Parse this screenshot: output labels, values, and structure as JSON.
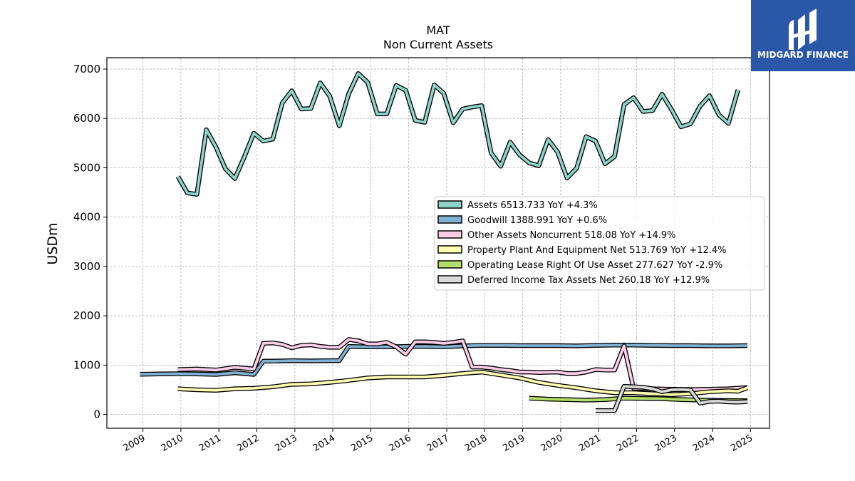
{
  "brand": {
    "logo_text": "MIDGARD FINANCE",
    "logo_bg": "#2b57a8",
    "logo_icon": "midgard-logo-icon"
  },
  "chart_data": {
    "type": "line",
    "title": "MAT",
    "subtitle": "Non Current  Assets",
    "ylabel": "USDm",
    "xlabel": "",
    "ylim": [
      -280,
      7230
    ],
    "xlim": [
      2008.05,
      2025.5
    ],
    "grid": true,
    "legend_position": "center-right",
    "y_ticks": [
      0,
      1000,
      2000,
      3000,
      4000,
      5000,
      6000,
      7000
    ],
    "x_ticks": [
      2009,
      2010,
      2011,
      2012,
      2013,
      2014,
      2015,
      2016,
      2017,
      2018,
      2019,
      2020,
      2021,
      2022,
      2023,
      2024,
      2025
    ],
    "series": [
      {
        "name": "Assets",
        "legend": "Assets  6513.733 YoY +4.3%",
        "color": "#8dd3c7",
        "points": [
          [
            2009.92,
            4820
          ],
          [
            2010.17,
            4490
          ],
          [
            2010.42,
            4460
          ],
          [
            2010.67,
            5770
          ],
          [
            2010.92,
            5420
          ],
          [
            2011.17,
            4980
          ],
          [
            2011.42,
            4780
          ],
          [
            2011.67,
            5220
          ],
          [
            2011.92,
            5700
          ],
          [
            2012.17,
            5540
          ],
          [
            2012.42,
            5580
          ],
          [
            2012.67,
            6310
          ],
          [
            2012.92,
            6560
          ],
          [
            2013.17,
            6190
          ],
          [
            2013.42,
            6200
          ],
          [
            2013.67,
            6720
          ],
          [
            2013.92,
            6450
          ],
          [
            2014.17,
            5850
          ],
          [
            2014.42,
            6500
          ],
          [
            2014.67,
            6910
          ],
          [
            2014.92,
            6730
          ],
          [
            2015.17,
            6090
          ],
          [
            2015.42,
            6090
          ],
          [
            2015.67,
            6670
          ],
          [
            2015.92,
            6570
          ],
          [
            2016.17,
            5960
          ],
          [
            2016.42,
            5920
          ],
          [
            2016.67,
            6680
          ],
          [
            2016.92,
            6510
          ],
          [
            2017.17,
            5910
          ],
          [
            2017.42,
            6190
          ],
          [
            2017.67,
            6230
          ],
          [
            2017.92,
            6260
          ],
          [
            2018.17,
            5300
          ],
          [
            2018.42,
            5030
          ],
          [
            2018.67,
            5520
          ],
          [
            2018.92,
            5260
          ],
          [
            2019.17,
            5100
          ],
          [
            2019.42,
            5040
          ],
          [
            2019.67,
            5570
          ],
          [
            2019.92,
            5320
          ],
          [
            2020.17,
            4790
          ],
          [
            2020.42,
            4990
          ],
          [
            2020.67,
            5630
          ],
          [
            2020.92,
            5540
          ],
          [
            2021.17,
            5080
          ],
          [
            2021.42,
            5230
          ],
          [
            2021.67,
            6280
          ],
          [
            2021.92,
            6420
          ],
          [
            2022.17,
            6140
          ],
          [
            2022.42,
            6160
          ],
          [
            2022.67,
            6490
          ],
          [
            2022.92,
            6180
          ],
          [
            2023.17,
            5830
          ],
          [
            2023.42,
            5890
          ],
          [
            2023.67,
            6250
          ],
          [
            2023.92,
            6460
          ],
          [
            2024.17,
            6070
          ],
          [
            2024.42,
            5900
          ],
          [
            2024.67,
            6580
          ]
        ]
      },
      {
        "name": "Goodwill",
        "legend": "Goodwill  1388.991 YoY +0.6%",
        "color": "#80b1d3",
        "points": [
          [
            2008.92,
            815
          ],
          [
            2009.42,
            820
          ],
          [
            2009.92,
            825
          ],
          [
            2010.42,
            820
          ],
          [
            2010.92,
            810
          ],
          [
            2011.42,
            845
          ],
          [
            2011.92,
            810
          ],
          [
            2012.17,
            1080
          ],
          [
            2012.42,
            1080
          ],
          [
            2012.67,
            1085
          ],
          [
            2012.92,
            1090
          ],
          [
            2013.42,
            1085
          ],
          [
            2013.92,
            1090
          ],
          [
            2014.17,
            1090
          ],
          [
            2014.42,
            1380
          ],
          [
            2014.92,
            1370
          ],
          [
            2015.42,
            1370
          ],
          [
            2015.92,
            1380
          ],
          [
            2016.42,
            1380
          ],
          [
            2016.92,
            1370
          ],
          [
            2017.42,
            1390
          ],
          [
            2017.92,
            1400
          ],
          [
            2018.42,
            1400
          ],
          [
            2018.92,
            1395
          ],
          [
            2019.42,
            1395
          ],
          [
            2019.92,
            1395
          ],
          [
            2020.42,
            1390
          ],
          [
            2020.92,
            1400
          ],
          [
            2021.42,
            1405
          ],
          [
            2021.92,
            1405
          ],
          [
            2022.42,
            1400
          ],
          [
            2022.92,
            1395
          ],
          [
            2023.42,
            1395
          ],
          [
            2023.92,
            1390
          ],
          [
            2024.42,
            1390
          ],
          [
            2024.92,
            1395
          ]
        ]
      },
      {
        "name": "Other Assets Noncurrent",
        "legend": "Other Assets Noncurrent  518.08 YoY +14.9%",
        "color": "#fccde5",
        "points": [
          [
            2009.92,
            910
          ],
          [
            2010.42,
            920
          ],
          [
            2010.92,
            900
          ],
          [
            2011.42,
            955
          ],
          [
            2011.92,
            920
          ],
          [
            2012.17,
            1440
          ],
          [
            2012.42,
            1450
          ],
          [
            2012.67,
            1420
          ],
          [
            2012.92,
            1350
          ],
          [
            2013.17,
            1400
          ],
          [
            2013.42,
            1410
          ],
          [
            2013.67,
            1380
          ],
          [
            2013.92,
            1360
          ],
          [
            2014.17,
            1360
          ],
          [
            2014.42,
            1520
          ],
          [
            2014.67,
            1490
          ],
          [
            2014.92,
            1430
          ],
          [
            2015.17,
            1430
          ],
          [
            2015.42,
            1460
          ],
          [
            2015.67,
            1370
          ],
          [
            2015.92,
            1220
          ],
          [
            2016.17,
            1470
          ],
          [
            2016.42,
            1470
          ],
          [
            2016.67,
            1460
          ],
          [
            2016.92,
            1440
          ],
          [
            2017.17,
            1460
          ],
          [
            2017.42,
            1490
          ],
          [
            2017.67,
            960
          ],
          [
            2017.92,
            960
          ],
          [
            2018.17,
            940
          ],
          [
            2018.42,
            910
          ],
          [
            2018.67,
            890
          ],
          [
            2018.92,
            860
          ],
          [
            2019.17,
            860
          ],
          [
            2019.42,
            850
          ],
          [
            2019.67,
            855
          ],
          [
            2019.92,
            860
          ],
          [
            2020.17,
            830
          ],
          [
            2020.42,
            830
          ],
          [
            2020.67,
            860
          ],
          [
            2020.92,
            910
          ],
          [
            2021.17,
            900
          ],
          [
            2021.42,
            900
          ],
          [
            2021.67,
            1390
          ],
          [
            2021.92,
            530
          ],
          [
            2022.42,
            520
          ],
          [
            2022.92,
            510
          ],
          [
            2023.42,
            505
          ],
          [
            2023.92,
            510
          ],
          [
            2024.42,
            520
          ],
          [
            2024.92,
            545
          ]
        ]
      },
      {
        "name": "Property Plant And Equipment Net",
        "legend": "Property Plant And Equipment Net  513.769 YoY +12.4%",
        "color": "#ffffb3",
        "points": [
          [
            2009.92,
            520
          ],
          [
            2010.42,
            500
          ],
          [
            2010.92,
            490
          ],
          [
            2011.42,
            520
          ],
          [
            2011.92,
            530
          ],
          [
            2012.42,
            560
          ],
          [
            2012.92,
            610
          ],
          [
            2013.42,
            620
          ],
          [
            2013.92,
            650
          ],
          [
            2014.42,
            690
          ],
          [
            2014.92,
            740
          ],
          [
            2015.42,
            760
          ],
          [
            2015.92,
            760
          ],
          [
            2016.42,
            760
          ],
          [
            2016.92,
            790
          ],
          [
            2017.42,
            830
          ],
          [
            2017.92,
            860
          ],
          [
            2018.42,
            800
          ],
          [
            2018.92,
            740
          ],
          [
            2019.42,
            650
          ],
          [
            2019.92,
            590
          ],
          [
            2020.42,
            540
          ],
          [
            2020.92,
            480
          ],
          [
            2021.42,
            440
          ],
          [
            2021.92,
            440
          ],
          [
            2022.42,
            420
          ],
          [
            2022.92,
            400
          ],
          [
            2023.42,
            420
          ],
          [
            2023.92,
            460
          ],
          [
            2024.42,
            480
          ],
          [
            2024.67,
            470
          ],
          [
            2024.92,
            540
          ]
        ]
      },
      {
        "name": "Operating Lease Right Of Use Asset",
        "legend": "Operating Lease Right Of Use Asset  277.627 YoY -2.9%",
        "color": "#b3de69",
        "points": [
          [
            2019.17,
            330
          ],
          [
            2019.67,
            310
          ],
          [
            2020.17,
            300
          ],
          [
            2020.67,
            290
          ],
          [
            2021.17,
            300
          ],
          [
            2021.67,
            330
          ],
          [
            2022.17,
            325
          ],
          [
            2022.67,
            320
          ],
          [
            2023.17,
            300
          ],
          [
            2023.67,
            290
          ],
          [
            2024.17,
            285
          ],
          [
            2024.92,
            278
          ]
        ]
      },
      {
        "name": "Deferred Income Tax Assets Net",
        "legend": "Deferred Income Tax Assets Net  260.18 YoY +12.9%",
        "color": "#d9d9d9",
        "points": [
          [
            2020.92,
            80
          ],
          [
            2021.17,
            80
          ],
          [
            2021.42,
            80
          ],
          [
            2021.67,
            570
          ],
          [
            2021.92,
            560
          ],
          [
            2022.17,
            550
          ],
          [
            2022.42,
            520
          ],
          [
            2022.67,
            460
          ],
          [
            2022.92,
            500
          ],
          [
            2023.17,
            505
          ],
          [
            2023.42,
            495
          ],
          [
            2023.67,
            230
          ],
          [
            2023.92,
            265
          ],
          [
            2024.17,
            270
          ],
          [
            2024.42,
            255
          ],
          [
            2024.67,
            250
          ],
          [
            2024.92,
            260
          ]
        ]
      }
    ]
  }
}
